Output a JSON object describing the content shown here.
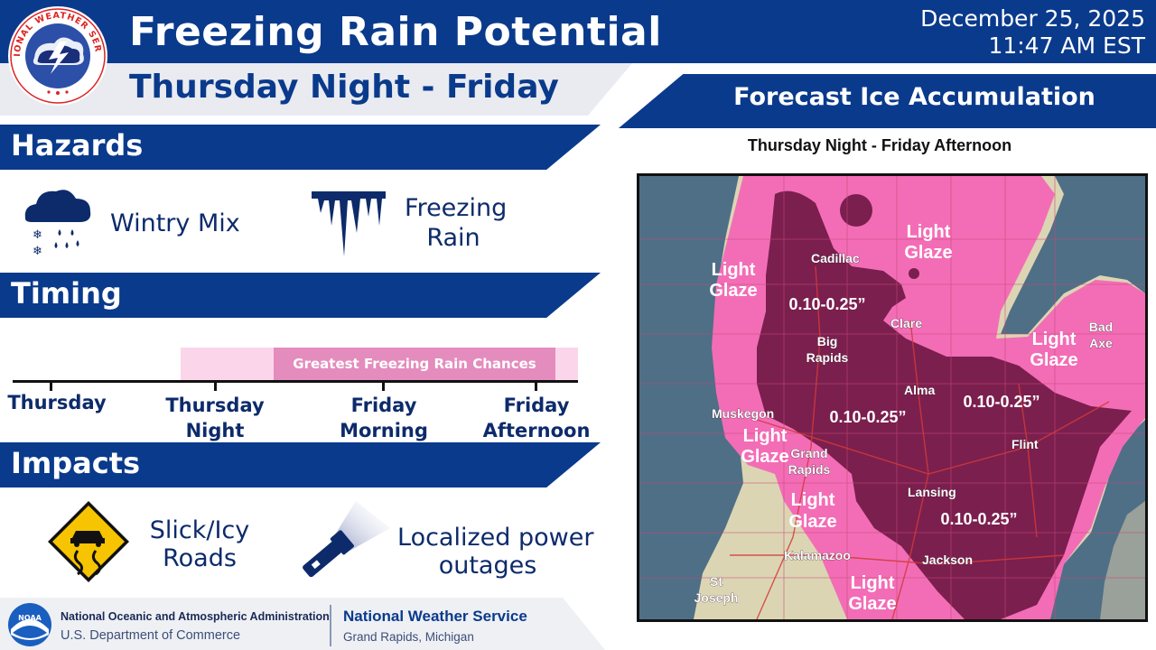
{
  "header": {
    "title": "Freezing Rain Potential",
    "subtitle": "Thursday Night - Friday",
    "issue_date": "December 25, 2025",
    "issue_time": "11:47 AM EST",
    "logo_text": "NATIONAL WEATHER SERVICE"
  },
  "hazards": {
    "label": "Hazards",
    "items": [
      {
        "icon": "wintry-mix-icon",
        "text": "Wintry Mix"
      },
      {
        "icon": "icicles-icon",
        "text_line1": "Freezing",
        "text_line2": "Rain"
      }
    ]
  },
  "timing": {
    "label": "Timing",
    "bar_text": "Greatest Freezing Rain Chances",
    "periods": [
      {
        "line1": "Thursday",
        "line2": ""
      },
      {
        "line1": "Thursday",
        "line2": "Night"
      },
      {
        "line1": "Friday",
        "line2": "Morning"
      },
      {
        "line1": "Friday",
        "line2": "Afternoon"
      }
    ]
  },
  "impacts": {
    "label": "Impacts",
    "items": [
      {
        "icon": "slippery-road-sign-icon",
        "text_line1": "Slick/Icy",
        "text_line2": "Roads"
      },
      {
        "icon": "flashlight-icon",
        "text_line1": "Localized power",
        "text_line2": "outages"
      }
    ]
  },
  "map": {
    "header": "Forecast Ice Accumulation",
    "subtitle": "Thursday Night - Friday Afternoon",
    "cities": [
      {
        "name": "Cadillac"
      },
      {
        "name": "Clare"
      },
      {
        "name": "Big"
      },
      {
        "name": "Rapids"
      },
      {
        "name": "Alma"
      },
      {
        "name": "Muskegon"
      },
      {
        "name": "Grand"
      },
      {
        "name": "Rapids"
      },
      {
        "name": "Flint"
      },
      {
        "name": "Lansing"
      },
      {
        "name": "Bad"
      },
      {
        "name": "Axe"
      },
      {
        "name": "Kalamazoo"
      },
      {
        "name": "Jackson"
      },
      {
        "name": "St"
      },
      {
        "name": "Joseph"
      }
    ],
    "accumulation_labels": [
      "0.10-0.25”",
      "0.10-0.25”",
      "0.10-0.25”",
      "0.10-0.25”"
    ],
    "glaze_line1": "Light",
    "glaze_line2": "Glaze",
    "colors": {
      "water": "#4f6f86",
      "land": "#dcd5b4",
      "light_glaze": "#f36db6",
      "moderate": "#7b1f4e",
      "roads": "#d23a3a"
    }
  },
  "footer": {
    "noaa_logo_text": "NOAA",
    "noaa_name": "National Oceanic and Atmospheric Administration",
    "department": "U.S. Department of Commerce",
    "nws_name": "National Weather Service",
    "office": "Grand Rapids, Michigan"
  }
}
